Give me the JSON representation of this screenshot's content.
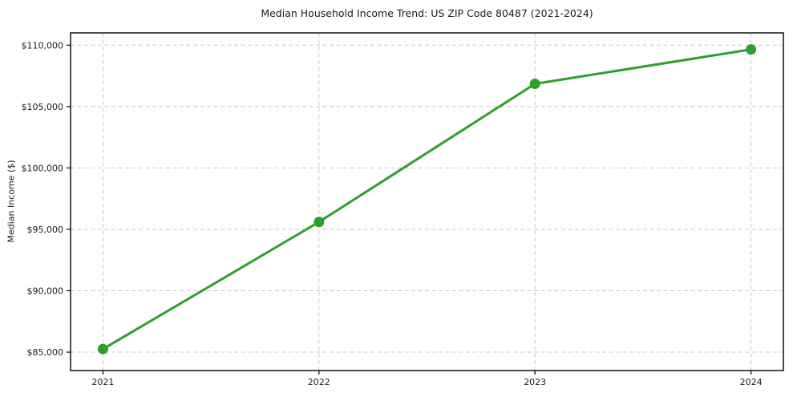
{
  "chart_data": {
    "type": "line",
    "title": "Median Household Income Trend: US ZIP Code 80487 (2021-2024)",
    "xlabel": "",
    "ylabel": "Median Income ($)",
    "x": [
      2021,
      2022,
      2023,
      2024
    ],
    "x_tick_labels": [
      "2021",
      "2022",
      "2023",
      "2024"
    ],
    "series": [
      {
        "name": "Median Household Income",
        "values": [
          85250,
          95600,
          106850,
          109650
        ]
      }
    ],
    "y_ticks": [
      85000,
      90000,
      95000,
      100000,
      105000,
      110000
    ],
    "y_tick_labels": [
      "$85,000",
      "$90,000",
      "$95,000",
      "$100,000",
      "$105,000",
      "$110,000"
    ],
    "ylim": [
      83500,
      111000
    ],
    "xlim": [
      2020.85,
      2024.15
    ],
    "grid": true,
    "legend": "none",
    "line_color": "#2ca02c",
    "marker": "circle",
    "grid_color": "#c8c8c8",
    "spine_color": "#000000",
    "background": "#ffffff"
  }
}
